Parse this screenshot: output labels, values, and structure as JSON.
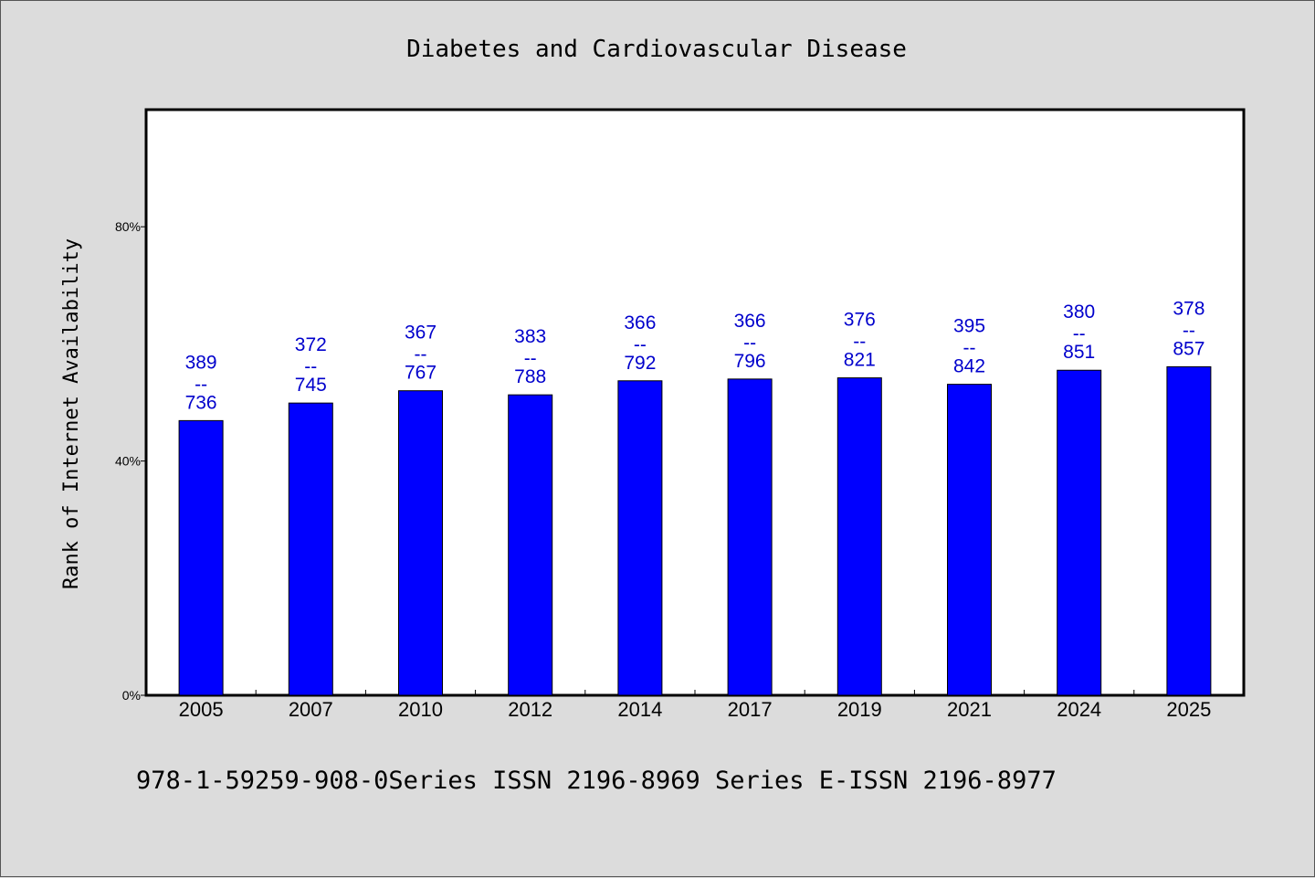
{
  "chart_data": {
    "type": "bar",
    "title": "Diabetes and Cardiovascular Disease",
    "xlabel": "",
    "ylabel": "Rank of Internet Availability",
    "categories": [
      "2005",
      "2007",
      "2010",
      "2012",
      "2014",
      "2017",
      "2019",
      "2021",
      "2024",
      "2025"
    ],
    "values": [
      46.9,
      49.9,
      52.0,
      51.3,
      53.7,
      54.0,
      54.2,
      53.1,
      55.5,
      56.1
    ],
    "data_labels": [
      {
        "top": "389",
        "sep": "--",
        "bottom": "736"
      },
      {
        "top": "372",
        "sep": "--",
        "bottom": "745"
      },
      {
        "top": "367",
        "sep": "--",
        "bottom": "767"
      },
      {
        "top": "383",
        "sep": "--",
        "bottom": "788"
      },
      {
        "top": "366",
        "sep": "--",
        "bottom": "792"
      },
      {
        "top": "366",
        "sep": "--",
        "bottom": "796"
      },
      {
        "top": "376",
        "sep": "--",
        "bottom": "821"
      },
      {
        "top": "395",
        "sep": "--",
        "bottom": "842"
      },
      {
        "top": "380",
        "sep": "--",
        "bottom": "851"
      },
      {
        "top": "378",
        "sep": "--",
        "bottom": "857"
      }
    ],
    "ylim": [
      0,
      100
    ],
    "yticks": [
      0,
      40,
      80
    ],
    "ytick_labels": [
      "0%",
      "40%",
      "80%"
    ],
    "grid": false,
    "legend": "none",
    "colors": {
      "bar": "#0000ff",
      "bar_edge": "#000000",
      "label": "#0000cc",
      "plot_bg": "#ffffff",
      "page_bg": "#dcdcdc"
    }
  },
  "footer": "978-1-59259-908-0Series ISSN 2196-8969 Series E-ISSN 2196-8977"
}
